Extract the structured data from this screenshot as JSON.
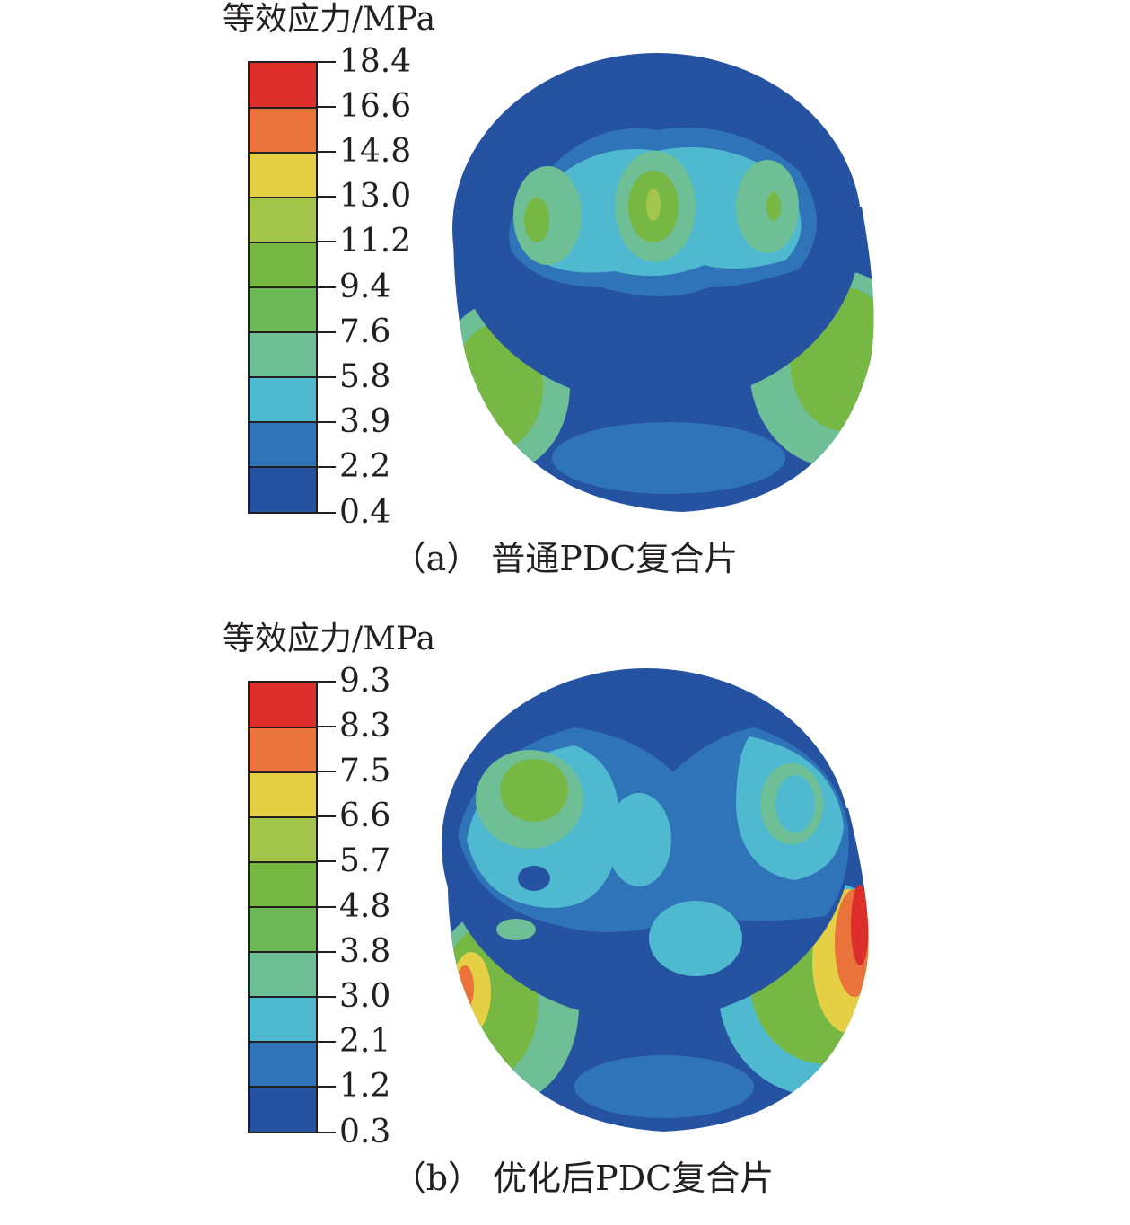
{
  "panels": [
    {
      "legend_title": "等效应力/MPa",
      "legend_values": [
        "18.4",
        "16.6",
        "14.8",
        "13.0",
        "11.2",
        "9.4",
        "7.6",
        "5.8",
        "3.9",
        "2.2",
        "0.4"
      ],
      "caption": "（a） 普通PDC复合片"
    },
    {
      "legend_title": "等效应力/MPa",
      "legend_values": [
        "9.3",
        "8.3",
        "7.5",
        "6.6",
        "5.7",
        "4.8",
        "3.8",
        "3.0",
        "2.1",
        "1.2",
        "0.3"
      ],
      "caption": "（b） 优化后PDC复合片"
    }
  ],
  "colors": {
    "band_1_top": "#dc2f2b",
    "band_2": "#e9733a",
    "band_3": "#e4cf45",
    "band_4": "#a4c54b",
    "band_5": "#76b843",
    "band_6": "#6cb857",
    "band_7": "#6ebf95",
    "band_8": "#4fbacf",
    "band_9": "#2f73b8",
    "band_10_bottom": "#2553a2"
  }
}
